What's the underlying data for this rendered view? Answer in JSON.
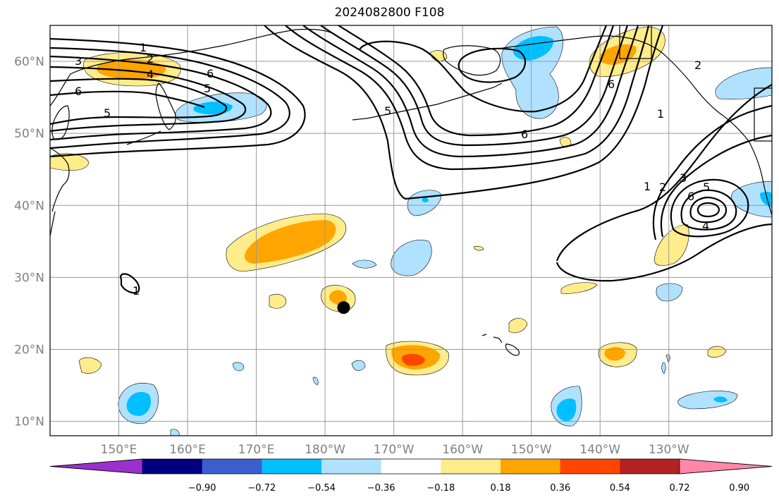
{
  "title": "2024082800 F108",
  "map": {
    "projection": "PlateCarree",
    "lon_range_display": [
      "140°E",
      "115°W"
    ],
    "lat_range": [
      8,
      65
    ],
    "lat_ticks": [
      "10°N",
      "20°N",
      "30°N",
      "40°N",
      "50°N",
      "60°N"
    ],
    "lon_ticks": [
      "150°E",
      "160°E",
      "170°E",
      "180°W",
      "170°W",
      "160°W",
      "150°W",
      "140°W",
      "130°W"
    ],
    "gridlines": true,
    "marker": {
      "type": "filled-circle",
      "color": "#000000",
      "lon": -177.3,
      "lat": 25.8
    }
  },
  "contours": {
    "color": "#000000",
    "levels": [
      "1",
      "2",
      "3",
      "4",
      "5",
      "6"
    ]
  },
  "colorbar": {
    "extend": "both",
    "orientation": "horizontal",
    "ticks": [
      "−0.90",
      "−0.72",
      "−0.54",
      "−0.36",
      "−0.18",
      "0.18",
      "0.36",
      "0.54",
      "0.72",
      "0.90"
    ],
    "colors": [
      "#9932cc",
      "#000080",
      "#3a5fcd",
      "#00bfff",
      "#b0e2ff",
      "#ffffff",
      "#ffec8b",
      "#ffa500",
      "#ff4500",
      "#b22222",
      "#ff88aa"
    ]
  }
}
